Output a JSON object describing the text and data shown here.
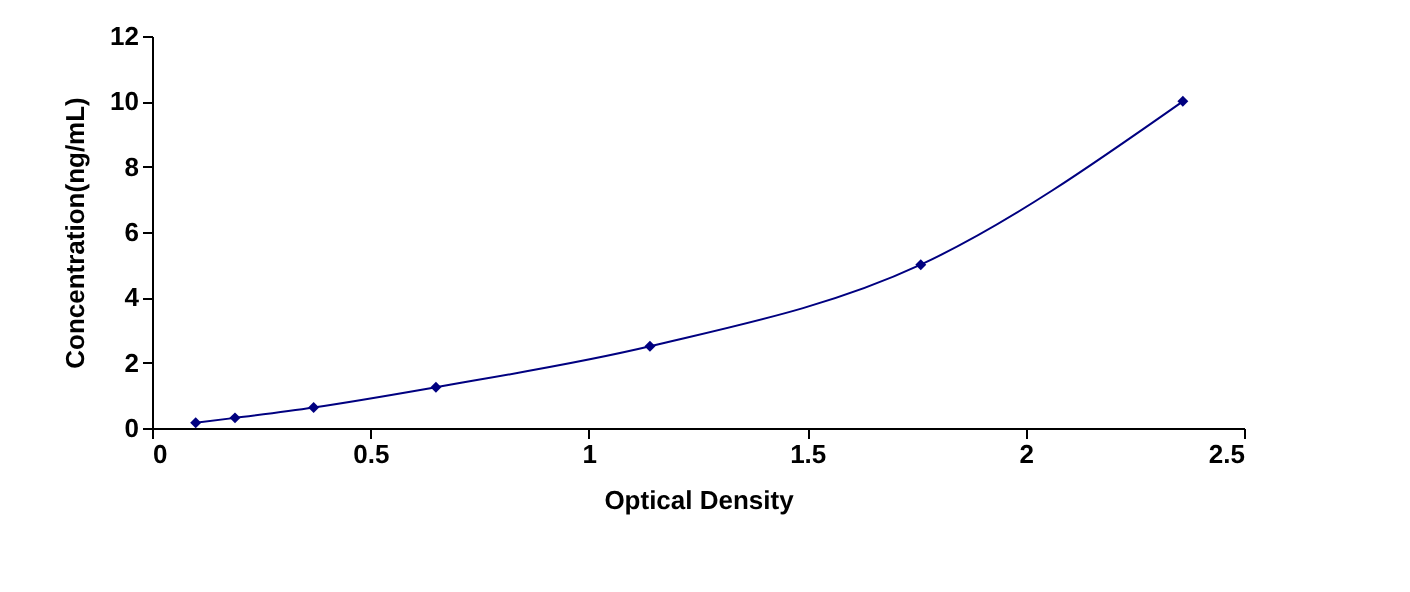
{
  "chart_data": {
    "type": "line",
    "xlabel": "Optical Density",
    "ylabel": "Concentration(ng/mL)",
    "series": [
      {
        "color": "#000080",
        "x": [
          0.1,
          0.19,
          0.37,
          0.65,
          1.14,
          1.76,
          2.36
        ],
        "values": [
          0.16,
          0.31,
          0.63,
          1.25,
          2.5,
          5,
          10
        ]
      }
    ],
    "xlim": [
      0,
      2.5
    ],
    "xticks": [
      0,
      0.5,
      1,
      1.5,
      2,
      2.5
    ],
    "ylim": [
      0,
      12
    ],
    "yticks": [
      0,
      2,
      4,
      6,
      8,
      10,
      12
    ],
    "grid": false,
    "marker": "diamond",
    "line_style": "solid"
  }
}
